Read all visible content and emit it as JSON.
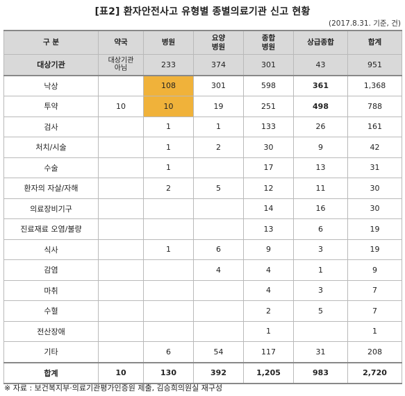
{
  "title": "[표2] 환자안전사고 유형별 종별의료기관 신고 현황",
  "date_note": "(2017.8.31. 기준, 건)",
  "headers": [
    {
      "line1": "구 분",
      "line2": ""
    },
    {
      "line1": "약국",
      "line2": ""
    },
    {
      "line1": "병원",
      "line2": ""
    },
    {
      "line1": "요양",
      "line2": "병원"
    },
    {
      "line1": "종합",
      "line2": "병원"
    },
    {
      "line1": "상급종합",
      "line2": ""
    },
    {
      "line1": "합계",
      "line2": ""
    }
  ],
  "target_row": {
    "label": "대상기관",
    "pharmacy_line1": "대상기관",
    "pharmacy_line2": "아님",
    "values": [
      "233",
      "374",
      "301",
      "43",
      "951"
    ]
  },
  "rows": [
    {
      "label": "낙상",
      "cells": [
        "",
        "108",
        "301",
        "598",
        "361",
        "1,368"
      ]
    },
    {
      "label": "투약",
      "cells": [
        "10",
        "10",
        "19",
        "251",
        "498",
        "788"
      ]
    },
    {
      "label": "검사",
      "cells": [
        "",
        "1",
        "1",
        "133",
        "26",
        "161"
      ]
    },
    {
      "label": "처치/시술",
      "cells": [
        "",
        "1",
        "2",
        "30",
        "9",
        "42"
      ]
    },
    {
      "label": "수술",
      "cells": [
        "",
        "1",
        "",
        "17",
        "13",
        "31"
      ]
    },
    {
      "label": "환자의 자살/자해",
      "cells": [
        "",
        "2",
        "5",
        "12",
        "11",
        "30"
      ]
    },
    {
      "label": "의료장비기구",
      "cells": [
        "",
        "",
        "",
        "14",
        "16",
        "30"
      ]
    },
    {
      "label": "진료재료 오염/불량",
      "cells": [
        "",
        "",
        "",
        "13",
        "6",
        "19"
      ]
    },
    {
      "label": "식사",
      "cells": [
        "",
        "1",
        "6",
        "9",
        "3",
        "19"
      ]
    },
    {
      "label": "감염",
      "cells": [
        "",
        "",
        "4",
        "4",
        "1",
        "9"
      ]
    },
    {
      "label": "마취",
      "cells": [
        "",
        "",
        "",
        "4",
        "3",
        "7"
      ]
    },
    {
      "label": "수혈",
      "cells": [
        "",
        "",
        "",
        "2",
        "5",
        "7"
      ]
    },
    {
      "label": "전산장애",
      "cells": [
        "",
        "",
        "",
        "1",
        "",
        "1"
      ]
    },
    {
      "label": "기타",
      "cells": [
        "",
        "6",
        "54",
        "117",
        "31",
        "208"
      ]
    }
  ],
  "total_row": {
    "label": "합계",
    "cells": [
      "10",
      "130",
      "392",
      "1,205",
      "983",
      "2,720"
    ]
  },
  "highlight_color": "#f0b23a",
  "source": "※ 자료 : 보건복지부·의료기관평가인증원 제출, 김승희의원실 재구성"
}
